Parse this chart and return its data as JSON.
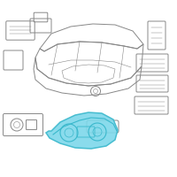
{
  "bg_color": "#ffffff",
  "oc": "#888888",
  "hc": "#3ab8cc",
  "hf": "#7dd8ea",
  "lw": 0.7,
  "tlw": 0.4
}
